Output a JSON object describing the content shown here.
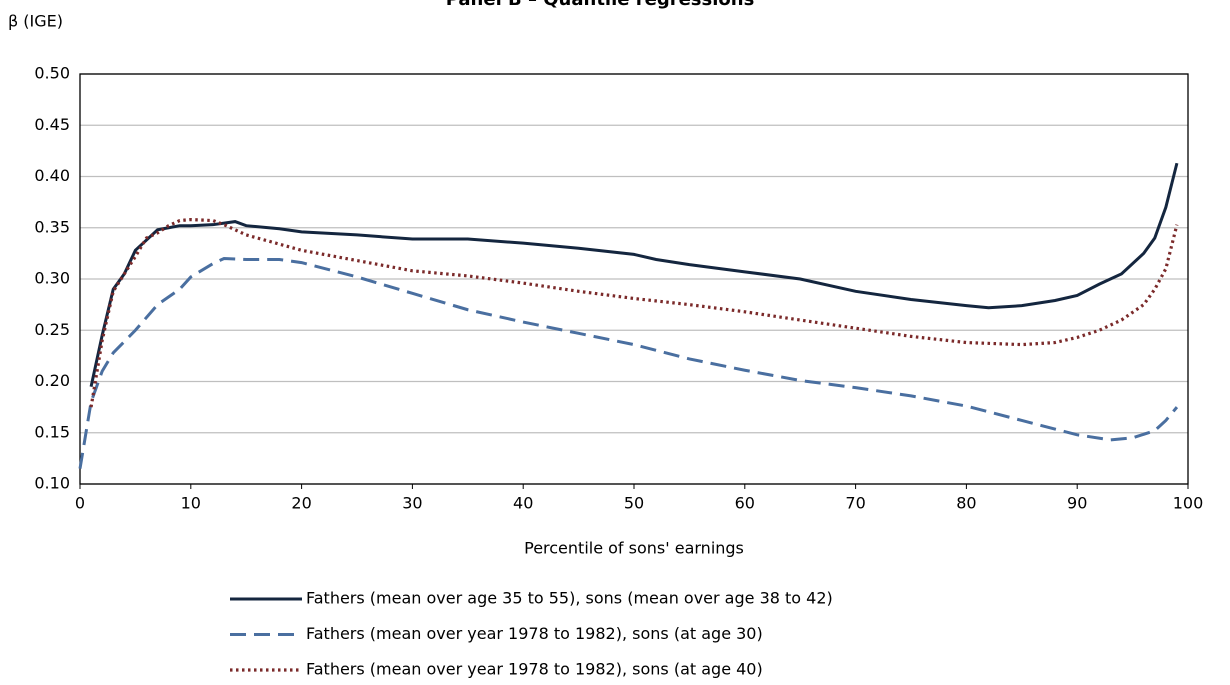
{
  "chart_data": {
    "type": "line",
    "title": "Panel B – Quantile regressions",
    "y_label": "β (IGE)",
    "x_label": "Percentile of sons' earnings",
    "xlim": [
      0,
      100
    ],
    "xticks": [
      0,
      10,
      20,
      30,
      40,
      50,
      60,
      70,
      80,
      90,
      100
    ],
    "ylim": [
      0.1,
      0.5
    ],
    "yticks": [
      {
        "value": 0.1,
        "label": "0.10"
      },
      {
        "value": 0.15,
        "label": "0.15"
      },
      {
        "value": 0.2,
        "label": "0.20"
      },
      {
        "value": 0.25,
        "label": "0.25"
      },
      {
        "value": 0.3,
        "label": "0.30"
      },
      {
        "value": 0.35,
        "label": "0.35"
      },
      {
        "value": 0.4,
        "label": "0.40"
      },
      {
        "value": 0.45,
        "label": "0.45"
      },
      {
        "value": 0.5,
        "label": "0.50"
      }
    ],
    "grid": true,
    "legend": "bottom",
    "series": [
      {
        "name": "Fathers (mean over age 35 to 55), sons (mean over age 38 to 42)",
        "color": "#14263f",
        "style": "solid",
        "x": [
          1,
          2,
          3,
          4,
          5,
          6,
          7,
          8,
          9,
          10,
          12,
          14,
          15,
          18,
          20,
          25,
          30,
          35,
          40,
          45,
          50,
          52,
          55,
          60,
          65,
          70,
          75,
          80,
          82,
          85,
          88,
          90,
          92,
          94,
          96,
          97,
          98,
          99
        ],
        "values": [
          0.195,
          0.245,
          0.29,
          0.305,
          0.328,
          0.338,
          0.348,
          0.35,
          0.352,
          0.352,
          0.353,
          0.356,
          0.352,
          0.349,
          0.346,
          0.343,
          0.339,
          0.339,
          0.335,
          0.33,
          0.324,
          0.319,
          0.314,
          0.307,
          0.3,
          0.288,
          0.28,
          0.274,
          0.272,
          0.274,
          0.279,
          0.284,
          0.295,
          0.305,
          0.325,
          0.34,
          0.37,
          0.413
        ]
      },
      {
        "name": "Fathers (mean over year 1978 to 1982), sons (at age 30)",
        "color": "#4a6fa0",
        "style": "dashed",
        "x": [
          0,
          1,
          2,
          3,
          5,
          7,
          9,
          10,
          12,
          13,
          15,
          18,
          20,
          25,
          30,
          35,
          40,
          45,
          50,
          55,
          60,
          65,
          70,
          75,
          80,
          85,
          90,
          93,
          95,
          97,
          98,
          99
        ],
        "values": [
          0.115,
          0.18,
          0.21,
          0.228,
          0.25,
          0.275,
          0.29,
          0.302,
          0.315,
          0.32,
          0.319,
          0.319,
          0.316,
          0.302,
          0.286,
          0.27,
          0.258,
          0.247,
          0.236,
          0.222,
          0.211,
          0.201,
          0.194,
          0.186,
          0.176,
          0.162,
          0.148,
          0.143,
          0.145,
          0.152,
          0.162,
          0.175
        ]
      },
      {
        "name": "Fathers (mean over year 1978 to 1982), sons (at age 40)",
        "color": "#7b2a2a",
        "style": "dotted",
        "x": [
          1,
          2,
          3,
          4,
          5,
          6,
          7,
          8,
          9,
          10,
          12,
          13,
          15,
          20,
          25,
          30,
          35,
          40,
          45,
          50,
          55,
          60,
          65,
          70,
          75,
          80,
          85,
          88,
          90,
          92,
          94,
          96,
          97,
          98,
          99
        ],
        "values": [
          0.175,
          0.24,
          0.288,
          0.305,
          0.322,
          0.34,
          0.345,
          0.352,
          0.357,
          0.358,
          0.357,
          0.353,
          0.343,
          0.328,
          0.318,
          0.308,
          0.303,
          0.296,
          0.288,
          0.281,
          0.275,
          0.268,
          0.26,
          0.252,
          0.244,
          0.238,
          0.236,
          0.238,
          0.243,
          0.25,
          0.26,
          0.275,
          0.29,
          0.31,
          0.353
        ]
      }
    ]
  }
}
